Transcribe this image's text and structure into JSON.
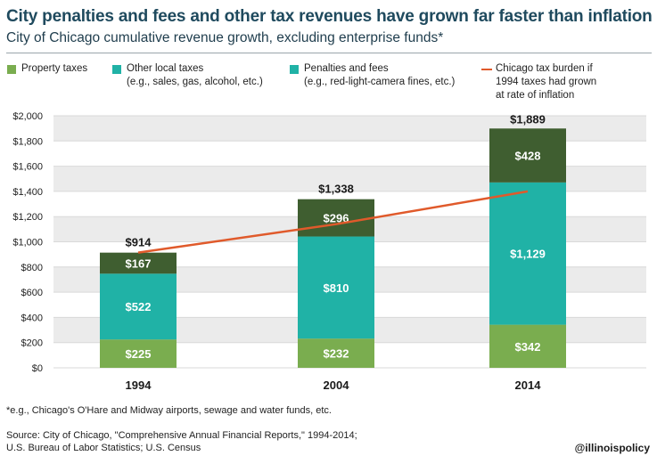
{
  "title": "City penalties and fees and other tax revenues have grown far faster than inflation",
  "subtitle": "City of Chicago cumulative revenue growth, excluding enterprise funds*",
  "legend": {
    "property": "Property taxes",
    "other_line1": "Other local taxes",
    "other_line2": "(e.g., sales, gas, alcohol, etc.)",
    "penalties_line1": "Penalties and fees",
    "penalties_line2": "(e.g., red-light-camera fines, etc.)",
    "inflation_line1": "Chicago tax burden if",
    "inflation_line2": "1994 taxes had grown",
    "inflation_line3": "at rate of inflation"
  },
  "colors": {
    "property": "#7aad4f",
    "other": "#20b2a6",
    "penalties": "#3f5e30",
    "inflation": "#e05a2b"
  },
  "footnote": "*e.g., Chicago's O'Hare and Midway airports, sewage and water funds, etc.",
  "source_line1": "Source: City of Chicago, \"Comprehensive Annual Financial Reports,\" 1994-2014;",
  "source_line2": "U.S. Bureau of Labor Statistics; U.S. Census",
  "handle": "@illinoispolicy",
  "chart_data": {
    "type": "bar",
    "stacked": true,
    "categories": [
      "1994",
      "2004",
      "2014"
    ],
    "series": [
      {
        "name": "Property taxes",
        "values": [
          225,
          232,
          342
        ],
        "labels": [
          "$225",
          "$232",
          "$342"
        ]
      },
      {
        "name": "Other local taxes",
        "values": [
          522,
          810,
          1129
        ],
        "labels": [
          "$522",
          "$810",
          "$1,129"
        ]
      },
      {
        "name": "Penalties and fees",
        "values": [
          167,
          296,
          428
        ],
        "labels": [
          "$167",
          "$296",
          "$428"
        ]
      }
    ],
    "totals": [
      914,
      1338,
      1889
    ],
    "total_labels": [
      "$914",
      "$1,338",
      "$1,889"
    ],
    "line": {
      "name": "Chicago tax burden if 1994 taxes had grown at rate of inflation",
      "values": [
        914,
        1140,
        1400
      ]
    },
    "y_ticks": [
      0,
      200,
      400,
      600,
      800,
      1000,
      1200,
      1400,
      1600,
      1800,
      2000
    ],
    "y_tick_labels": [
      "$0",
      "$200",
      "$400",
      "$600",
      "$800",
      "$1,000",
      "$1,200",
      "$1,400",
      "$1,600",
      "$1,800",
      "$2,000"
    ],
    "ylim": [
      0,
      2000
    ],
    "grid": "bands"
  }
}
